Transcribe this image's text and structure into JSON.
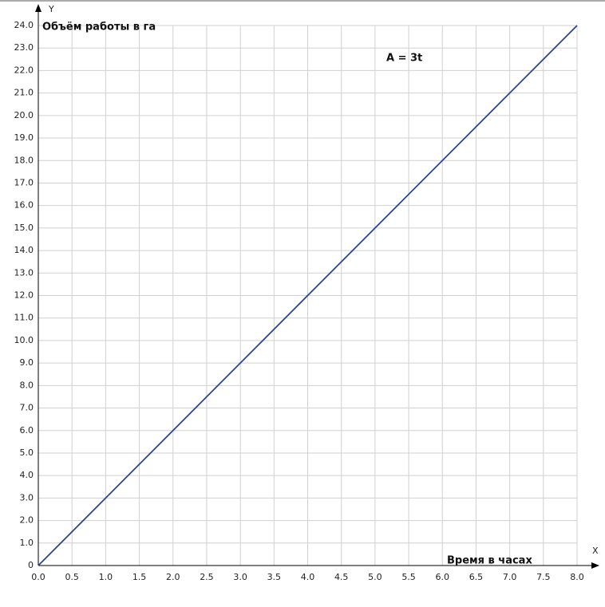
{
  "chart_data": {
    "type": "line",
    "y_label": "Объём работы в га",
    "x_label": "Время в часах",
    "annotation": "A = 3t",
    "y_axis_name": "Y",
    "x_axis_name": "X",
    "x": [
      0,
      8
    ],
    "values": [
      0,
      24
    ],
    "color": "#2b4596",
    "xlim": [
      0,
      8
    ],
    "ylim": [
      0,
      24
    ],
    "grid": true,
    "xticks": [
      {
        "value": 0,
        "label": "0.0"
      },
      0.5,
      {
        "value": 1,
        "label": "1.0"
      },
      1.5,
      {
        "value": 2,
        "label": "2.0"
      },
      2.5,
      {
        "value": 3,
        "label": "3.0"
      },
      3.5,
      {
        "value": 4,
        "label": "4.0"
      },
      4.5,
      {
        "value": 5,
        "label": "5.0"
      },
      5.5,
      {
        "value": 6,
        "label": "6.0"
      },
      6.5,
      {
        "value": 7,
        "label": "7.0"
      },
      7.5,
      {
        "value": 8,
        "label": "8.0"
      }
    ],
    "yticks": [
      0,
      {
        "value": 1,
        "label": "1.0"
      },
      {
        "value": 2,
        "label": "2.0"
      },
      {
        "value": 3,
        "label": "3.0"
      },
      {
        "value": 4,
        "label": "4.0"
      },
      {
        "value": 5,
        "label": "5.0"
      },
      {
        "value": 6,
        "label": "6.0"
      },
      {
        "value": 7,
        "label": "7.0"
      },
      {
        "value": 8,
        "label": "8.0"
      },
      {
        "value": 9,
        "label": "9.0"
      },
      {
        "value": 10,
        "label": "10.0"
      },
      {
        "value": 11,
        "label": "11.0"
      },
      {
        "value": 12,
        "label": "12.0"
      },
      {
        "value": 13,
        "label": "13.0"
      },
      {
        "value": 14,
        "label": "14.0"
      },
      {
        "value": 15,
        "label": "15.0"
      },
      {
        "value": 16,
        "label": "16.0"
      },
      {
        "value": 17,
        "label": "17.0"
      },
      {
        "value": 18,
        "label": "18.0"
      },
      {
        "value": 19,
        "label": "19.0"
      },
      {
        "value": 20,
        "label": "20.0"
      },
      {
        "value": 21,
        "label": "21.0"
      },
      {
        "value": 22,
        "label": "22.0"
      },
      {
        "value": 23,
        "label": "23.0"
      },
      {
        "value": 24,
        "label": "24.0"
      }
    ]
  }
}
